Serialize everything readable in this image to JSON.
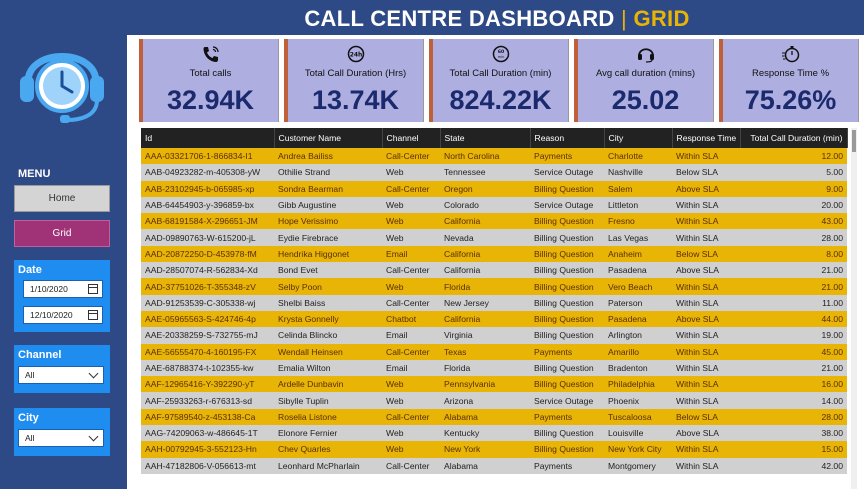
{
  "header": {
    "title": "CALL CENTRE DASHBOARD",
    "separator": "|",
    "subtitle": "GRID"
  },
  "sidebar": {
    "logo": "headset-clock-icon",
    "menu_label": "MENU",
    "nav": [
      {
        "label": "Home"
      },
      {
        "label": "Grid"
      }
    ],
    "date_filter": {
      "label": "Date",
      "start": "1/10/2020",
      "end": "12/10/2020"
    },
    "channel_filter": {
      "label": "Channel",
      "value": "All"
    },
    "city_filter": {
      "label": "City",
      "value": "All"
    }
  },
  "kpis": [
    {
      "icon": "phone-icon",
      "label": "Total calls",
      "value": "32.94K"
    },
    {
      "icon": "24h-clock-icon",
      "label": "Total Call Duration (Hrs)",
      "value": "13.74K"
    },
    {
      "icon": "60min-clock-icon",
      "label": "Total Call Duration (min)",
      "value": "824.22K"
    },
    {
      "icon": "headset-icon",
      "label": "Avg call duration (mins)",
      "value": "25.02"
    },
    {
      "icon": "stopwatch-icon",
      "label": "Response Time %",
      "value": "75.26%"
    }
  ],
  "colors": {
    "accent_gold": "#e8b406",
    "sidebar_blue": "#2e4a86",
    "panel_blue": "#1f8cf0",
    "kpi_bg": "#aeaee0",
    "grid_button": "#a03378"
  },
  "table": {
    "columns": [
      "Id",
      "Customer Name",
      "Channel",
      "State",
      "Reason",
      "City",
      "Response Time",
      "Total Call Duration (min)"
    ],
    "rows": [
      [
        "AAA-03321706-1-866834-I1",
        "Andrea Bailiss",
        "Call-Center",
        "North Carolina",
        "Payments",
        "Charlotte",
        "Within SLA",
        "12.00"
      ],
      [
        "AAB-04923282-m-405308-yW",
        "Othilie Strand",
        "Web",
        "Tennessee",
        "Service Outage",
        "Nashville",
        "Below SLA",
        "5.00"
      ],
      [
        "AAB-23102945-b-065985-xp",
        "Sondra Bearman",
        "Call-Center",
        "Oregon",
        "Billing Question",
        "Salem",
        "Above SLA",
        "9.00"
      ],
      [
        "AAB-64454903-y-396859-bx",
        "Gibb Augustine",
        "Web",
        "Colorado",
        "Service Outage",
        "Littleton",
        "Within SLA",
        "20.00"
      ],
      [
        "AAB-68191584-X-296651-JM",
        "Hope Verissimo",
        "Web",
        "California",
        "Billing Question",
        "Fresno",
        "Within SLA",
        "43.00"
      ],
      [
        "AAD-09890763-W-615200-jL",
        "Eydie Firebrace",
        "Web",
        "Nevada",
        "Billing Question",
        "Las Vegas",
        "Within SLA",
        "28.00"
      ],
      [
        "AAD-20872250-D-453978-fM",
        "Hendrika Higgonet",
        "Email",
        "California",
        "Billing Question",
        "Anaheim",
        "Below SLA",
        "8.00"
      ],
      [
        "AAD-28507074-R-562834-Xd",
        "Bond Evet",
        "Call-Center",
        "California",
        "Billing Question",
        "Pasadena",
        "Above SLA",
        "21.00"
      ],
      [
        "AAD-37751026-T-355348-zV",
        "Selby Poon",
        "Web",
        "Florida",
        "Billing Question",
        "Vero Beach",
        "Within SLA",
        "21.00"
      ],
      [
        "AAD-91253539-C-305338-wj",
        "Shelbi Baiss",
        "Call-Center",
        "New Jersey",
        "Billing Question",
        "Paterson",
        "Within SLA",
        "11.00"
      ],
      [
        "AAE-05965563-S-424746-4p",
        "Krysta Gonnelly",
        "Chatbot",
        "California",
        "Billing Question",
        "Pasadena",
        "Above SLA",
        "44.00"
      ],
      [
        "AAE-20338259-S-732755-mJ",
        "Celinda Blincko",
        "Email",
        "Virginia",
        "Billing Question",
        "Arlington",
        "Within SLA",
        "19.00"
      ],
      [
        "AAE-56555470-4-160195-FX",
        "Wendall Heinsen",
        "Call-Center",
        "Texas",
        "Payments",
        "Amarillo",
        "Within SLA",
        "45.00"
      ],
      [
        "AAE-68788374-t-102355-kw",
        "Emalia Wilton",
        "Email",
        "Florida",
        "Billing Question",
        "Bradenton",
        "Within SLA",
        "21.00"
      ],
      [
        "AAF-12965416-Y-392290-yT",
        "Ardelle Dunbavin",
        "Web",
        "Pennsylvania",
        "Billing Question",
        "Philadelphia",
        "Within SLA",
        "16.00"
      ],
      [
        "AAF-25933263-r-676313-sd",
        "Sibylle Tuplin",
        "Web",
        "Arizona",
        "Service Outage",
        "Phoenix",
        "Within SLA",
        "14.00"
      ],
      [
        "AAF-97589540-z-453138-Ca",
        "Roselia Listone",
        "Call-Center",
        "Alabama",
        "Payments",
        "Tuscaloosa",
        "Below SLA",
        "28.00"
      ],
      [
        "AAG-74209063-w-486645-1T",
        "Elonore Fernier",
        "Web",
        "Kentucky",
        "Billing Question",
        "Louisville",
        "Above SLA",
        "38.00"
      ],
      [
        "AAH-00792945-3-552123-Hn",
        "Chev Quarles",
        "Web",
        "New York",
        "Billing Question",
        "New York City",
        "Within SLA",
        "15.00"
      ],
      [
        "AAH-47182806-V-056613-mt",
        "Leonhard McPharlain",
        "Call-Center",
        "Alabama",
        "Payments",
        "Montgomery",
        "Within SLA",
        "42.00"
      ]
    ]
  }
}
